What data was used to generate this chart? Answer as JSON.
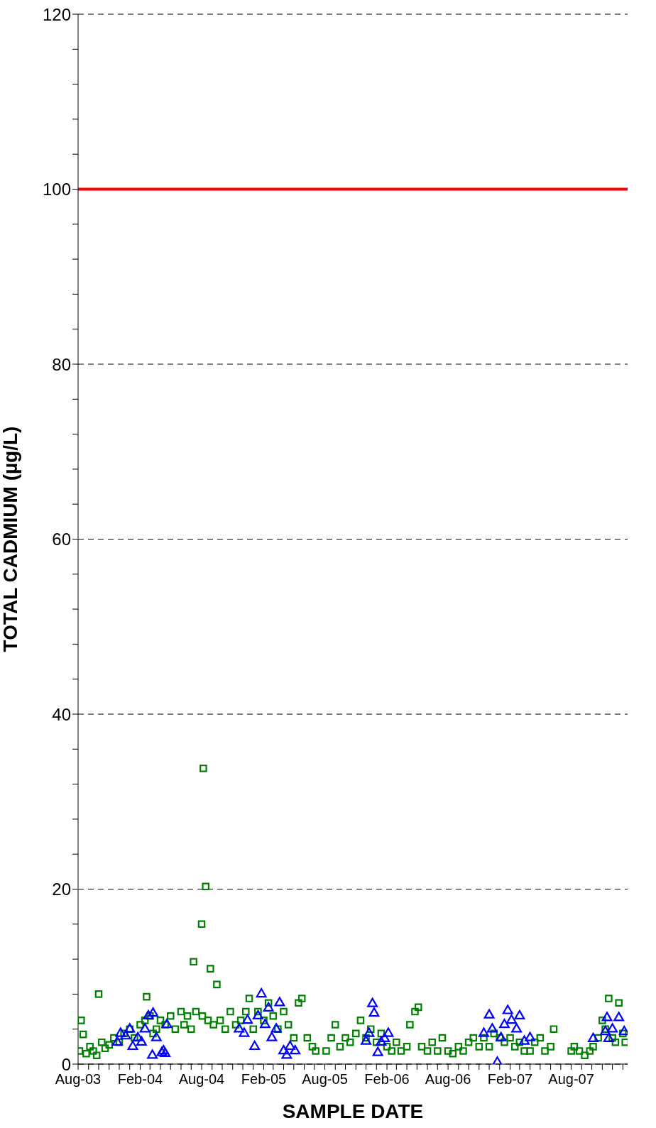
{
  "chart_data": {
    "type": "scatter",
    "xlabel": "SAMPLE DATE",
    "ylabel": "TOTAL CADMIUM (µg/L)",
    "xlim": [
      "2003-08-01",
      "2008-01-15"
    ],
    "ylim": [
      0,
      120
    ],
    "xticks": [
      {
        "value": "2003-08",
        "label": "Aug-03"
      },
      {
        "value": "2003-09",
        "label": null
      },
      {
        "value": "2003-10",
        "label": null
      },
      {
        "value": "2003-11",
        "label": null
      },
      {
        "value": "2003-12",
        "label": null
      },
      {
        "value": "2004-01",
        "label": null
      },
      {
        "value": "2004-02",
        "label": "Feb-04"
      },
      {
        "value": "2004-03",
        "label": null
      },
      {
        "value": "2004-04",
        "label": null
      },
      {
        "value": "2004-05",
        "label": null
      },
      {
        "value": "2004-06",
        "label": null
      },
      {
        "value": "2004-07",
        "label": null
      },
      {
        "value": "2004-08",
        "label": "Aug-04"
      },
      {
        "value": "2004-09",
        "label": null
      },
      {
        "value": "2004-10",
        "label": null
      },
      {
        "value": "2004-11",
        "label": null
      },
      {
        "value": "2004-12",
        "label": null
      },
      {
        "value": "2005-01",
        "label": null
      },
      {
        "value": "2005-02",
        "label": "Feb-05"
      },
      {
        "value": "2005-03",
        "label": null
      },
      {
        "value": "2005-04",
        "label": null
      },
      {
        "value": "2005-05",
        "label": null
      },
      {
        "value": "2005-06",
        "label": null
      },
      {
        "value": "2005-07",
        "label": null
      },
      {
        "value": "2005-08",
        "label": "Aug-05"
      },
      {
        "value": "2005-09",
        "label": null
      },
      {
        "value": "2005-10",
        "label": null
      },
      {
        "value": "2005-11",
        "label": null
      },
      {
        "value": "2005-12",
        "label": null
      },
      {
        "value": "2006-01",
        "label": null
      },
      {
        "value": "2006-02",
        "label": "Feb-06"
      },
      {
        "value": "2006-03",
        "label": null
      },
      {
        "value": "2006-04",
        "label": null
      },
      {
        "value": "2006-05",
        "label": null
      },
      {
        "value": "2006-06",
        "label": null
      },
      {
        "value": "2006-07",
        "label": null
      },
      {
        "value": "2006-08",
        "label": "Aug-06"
      },
      {
        "value": "2006-09",
        "label": null
      },
      {
        "value": "2006-10",
        "label": null
      },
      {
        "value": "2006-11",
        "label": null
      },
      {
        "value": "2006-12",
        "label": null
      },
      {
        "value": "2007-01",
        "label": null
      },
      {
        "value": "2007-02",
        "label": "Feb-07"
      },
      {
        "value": "2007-03",
        "label": null
      },
      {
        "value": "2007-04",
        "label": null
      },
      {
        "value": "2007-05",
        "label": null
      },
      {
        "value": "2007-06",
        "label": null
      },
      {
        "value": "2007-07",
        "label": null
      },
      {
        "value": "2007-08",
        "label": "Aug-07"
      },
      {
        "value": "2007-09",
        "label": null
      },
      {
        "value": "2007-10",
        "label": null
      },
      {
        "value": "2007-11",
        "label": null
      },
      {
        "value": "2007-12",
        "label": null
      },
      {
        "value": "2008-01",
        "label": null
      }
    ],
    "yticks": [
      0,
      {
        "value": 4,
        "label": null
      },
      {
        "value": 8,
        "label": null
      },
      {
        "value": 12,
        "label": null
      },
      {
        "value": 16,
        "label": null
      },
      20,
      {
        "value": 24,
        "label": null
      },
      {
        "value": 28,
        "label": null
      },
      {
        "value": 32,
        "label": null
      },
      {
        "value": 36,
        "label": null
      },
      40,
      {
        "value": 44,
        "label": null
      },
      {
        "value": 48,
        "label": null
      },
      {
        "value": 52,
        "label": null
      },
      {
        "value": 56,
        "label": null
      },
      60,
      {
        "value": 64,
        "label": null
      },
      {
        "value": 68,
        "label": null
      },
      {
        "value": 72,
        "label": null
      },
      {
        "value": 76,
        "label": null
      },
      80,
      {
        "value": 84,
        "label": null
      },
      {
        "value": 88,
        "label": null
      },
      {
        "value": 92,
        "label": null
      },
      {
        "value": 96,
        "label": null
      },
      100,
      {
        "value": 104,
        "label": null
      },
      {
        "value": 108,
        "label": null
      },
      {
        "value": 112,
        "label": null
      },
      {
        "value": 116,
        "label": null
      },
      120
    ],
    "grid": "y",
    "series": [
      {
        "color": "#008000",
        "marker": "square",
        "x": [
          "2003-08-05",
          "2003-08-10",
          "2003-08-16",
          "2003-08-25",
          "2003-09-05",
          "2003-09-15",
          "2003-09-25",
          "2003-10-01",
          "2003-10-10",
          "2003-10-20",
          "2003-11-01",
          "2003-11-15",
          "2003-12-01",
          "2003-12-15",
          "2004-01-01",
          "2004-01-15",
          "2004-02-01",
          "2004-02-15",
          "2004-02-20",
          "2004-03-01",
          "2004-03-10",
          "2004-03-20",
          "2004-04-01",
          "2004-04-15",
          "2004-05-01",
          "2004-05-15",
          "2004-06-01",
          "2004-06-10",
          "2004-06-20",
          "2004-07-01",
          "2004-07-08",
          "2004-07-15",
          "2004-08-01",
          "2004-08-03",
          "2004-08-06",
          "2004-08-13",
          "2004-08-20",
          "2004-08-27",
          "2004-09-05",
          "2004-09-15",
          "2004-09-25",
          "2004-10-10",
          "2004-10-25",
          "2004-11-10",
          "2004-11-25",
          "2004-12-10",
          "2004-12-20",
          "2005-01-01",
          "2005-01-15",
          "2005-02-01",
          "2005-02-15",
          "2005-03-01",
          "2005-03-15",
          "2005-04-01",
          "2005-04-15",
          "2005-05-01",
          "2005-05-15",
          "2005-05-25",
          "2005-06-10",
          "2005-06-25",
          "2005-07-05",
          "2005-08-05",
          "2005-08-20",
          "2005-09-01",
          "2005-09-15",
          "2005-10-01",
          "2005-10-15",
          "2005-11-01",
          "2005-11-15",
          "2005-12-01",
          "2005-12-15",
          "2006-01-01",
          "2006-01-15",
          "2006-02-01",
          "2006-02-15",
          "2006-03-01",
          "2006-03-15",
          "2006-04-01",
          "2006-04-10",
          "2006-04-25",
          "2006-05-05",
          "2006-05-15",
          "2006-06-01",
          "2006-06-15",
          "2006-07-01",
          "2006-07-15",
          "2006-08-01",
          "2006-08-15",
          "2006-09-01",
          "2006-09-15",
          "2006-10-01",
          "2006-10-15",
          "2006-11-01",
          "2006-11-15",
          "2006-12-01",
          "2006-12-15",
          "2007-01-01",
          "2007-01-15",
          "2007-02-01",
          "2007-02-15",
          "2007-03-01",
          "2007-03-15",
          "2007-04-01",
          "2007-04-15",
          "2007-05-01",
          "2007-05-15",
          "2007-06-01",
          "2007-06-10",
          "2007-08-01",
          "2007-08-10",
          "2007-08-25",
          "2007-09-10",
          "2007-09-25",
          "2007-10-05",
          "2007-10-20",
          "2007-11-01",
          "2007-11-10",
          "2007-11-20",
          "2007-12-01",
          "2007-12-10",
          "2007-12-20",
          "2008-01-01",
          "2008-01-08"
        ],
        "values": [
          1.5,
          5,
          3.4,
          1.2,
          2,
          1.5,
          1,
          8,
          2.5,
          1.8,
          2.2,
          3,
          2.5,
          3.5,
          4,
          3,
          4.5,
          5,
          7.7,
          5.5,
          3.5,
          4,
          5,
          4.5,
          5.5,
          4,
          6,
          4.5,
          5.5,
          4,
          11.7,
          6,
          16,
          5.5,
          33.8,
          20.3,
          5,
          10.9,
          4.5,
          9.1,
          5,
          4,
          6,
          4.5,
          5,
          6,
          7.5,
          4,
          6,
          5,
          7,
          5.5,
          4,
          6,
          4.5,
          3,
          7,
          7.5,
          3,
          2,
          1.5,
          1.5,
          3,
          4.5,
          2,
          3,
          2.5,
          3.5,
          5,
          3,
          4,
          2.5,
          3.5,
          2,
          1.5,
          2.5,
          1.5,
          2,
          4.5,
          6,
          6.5,
          2,
          1.5,
          2.5,
          1.5,
          3,
          1.5,
          1.2,
          2,
          1.5,
          2.5,
          3,
          2,
          3,
          2,
          3.5,
          3,
          2.5,
          3,
          2,
          2.5,
          1.5,
          1.5,
          2.5,
          3,
          1.5,
          2,
          4,
          1.5,
          2,
          1.5,
          1,
          1.5,
          2,
          3,
          5,
          4,
          7.5,
          3,
          2.5,
          7,
          3.5,
          2.5
        ]
      },
      {
        "color": "#0000ff",
        "marker": "triangle",
        "x": [
          "2003-11-25",
          "2003-12-05",
          "2003-12-20",
          "2004-01-01",
          "2004-01-10",
          "2004-01-25",
          "2004-02-05",
          "2004-02-15",
          "2004-02-25",
          "2004-03-08",
          "2004-03-10",
          "2004-03-20",
          "2004-04-05",
          "2004-04-10",
          "2004-04-15",
          "2004-04-20",
          "2004-11-20",
          "2004-12-05",
          "2004-12-15",
          "2005-01-05",
          "2005-01-15",
          "2005-01-25",
          "2005-02-05",
          "2005-02-15",
          "2005-02-25",
          "2005-03-10",
          "2005-03-20",
          "2005-04-01",
          "2005-04-10",
          "2005-04-20",
          "2005-05-05",
          "2005-12-01",
          "2005-12-10",
          "2005-12-20",
          "2005-12-25",
          "2006-01-05",
          "2006-01-15",
          "2006-01-25",
          "2006-02-05",
          "2006-11-15",
          "2006-12-01",
          "2006-12-10",
          "2006-12-25",
          "2007-01-05",
          "2007-01-15",
          "2007-01-25",
          "2007-02-05",
          "2007-02-20",
          "2007-03-01",
          "2007-03-15",
          "2007-04-01",
          "2007-10-05",
          "2007-11-10",
          "2007-11-15",
          "2007-11-20",
          "2007-12-01",
          "2007-12-20",
          "2008-01-05"
        ],
        "values": [
          2.5,
          3.5,
          3.2,
          4,
          2,
          3,
          2.5,
          4,
          5.5,
          1,
          5.8,
          3,
          1.3,
          1.5,
          1.2,
          4.5,
          4,
          3.5,
          5,
          2,
          5.5,
          8,
          4.5,
          6.4,
          3,
          4,
          7,
          1.5,
          1,
          2,
          1.5,
          2.6,
          3.5,
          6.9,
          5.8,
          1.3,
          2.5,
          2.9,
          3.5,
          3.5,
          5.6,
          4,
          0.2,
          3,
          4.5,
          6.1,
          5,
          4,
          5.5,
          2.6,
          3,
          2.9,
          3.7,
          5.3,
          2.9,
          4,
          5.3,
          3.7
        ]
      }
    ],
    "ref_lines": [
      {
        "axis": "y",
        "value": 100,
        "color": "#ff0000"
      }
    ]
  }
}
